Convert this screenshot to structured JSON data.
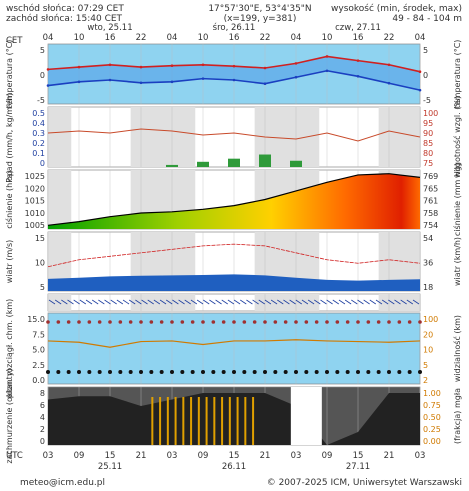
{
  "header": {
    "sunrise": "wschód słońca: 07:29 CET",
    "sunset": "zachód słońca: 15:40 CET",
    "coords": "17°57'30\"E, 53°4'35\"N",
    "grid": "(x=199, y=381)",
    "elev_title": "wysokość (min, środek, max)",
    "elev_values": "49 - 84 - 104 m"
  },
  "footer": {
    "email": "meteo@icm.edu.pl",
    "copyright": "© 2007-2025 ICM, Uniwersytet Warszawski"
  },
  "top_axis": {
    "tz": "CET",
    "hours": [
      "04",
      "10",
      "16",
      "22",
      "04",
      "10",
      "16",
      "22",
      "04",
      "10",
      "16",
      "22",
      "04"
    ],
    "days": [
      "wto, 25.11",
      "śro, 26.11",
      "czw, 27.11"
    ]
  },
  "bottom_axis": {
    "tz": "UTC",
    "hours": [
      "03",
      "09",
      "15",
      "21",
      "03",
      "09",
      "15",
      "21",
      "03",
      "09",
      "15",
      "21",
      "03"
    ],
    "days": [
      "25.11",
      "26.11",
      "27.11"
    ]
  },
  "chart_data": [
    {
      "type": "line",
      "id": "temperature",
      "ylabel_left": "temperatura (°C)",
      "ylabel_right": "temperatura (°C)",
      "yticks": [
        "5",
        "0",
        "-5"
      ],
      "ylim": [
        -7,
        6
      ],
      "x_hours_from_start": [
        0,
        6,
        12,
        18,
        24,
        30,
        36,
        42,
        48,
        54,
        60,
        66,
        72
      ],
      "series": [
        {
          "values": [
            0.5,
            1.0,
            1.5,
            1.0,
            1.3,
            1.5,
            1.2,
            0.8,
            1.8,
            3.3,
            2.4,
            1.5,
            0.0
          ]
        },
        {
          "values": [
            -3.0,
            -2.2,
            -1.8,
            -2.4,
            -2.2,
            -1.5,
            -1.8,
            -2.6,
            -1.2,
            0.2,
            -1.0,
            -2.5,
            -4.0
          ]
        }
      ]
    },
    {
      "type": "line",
      "id": "precipitation_humidity",
      "ylabel_left": "opad (mm/h, kg/m²/h)",
      "ylabel_right": "wilgotność wzgl. (%)",
      "yticks_left": [
        "0.5",
        "0.4",
        "0.3",
        "0.2",
        "0.1",
        "0"
      ],
      "yticks_right": [
        "100",
        "95",
        "90",
        "85",
        "80",
        "75"
      ],
      "humidity_values": [
        90,
        91,
        90,
        92,
        91,
        89,
        90,
        88,
        87,
        90,
        86,
        91,
        88
      ],
      "precip_values": [
        0,
        0,
        0,
        0,
        0.02,
        0.05,
        0.08,
        0.12,
        0.06,
        0,
        0,
        0,
        0
      ]
    },
    {
      "type": "area",
      "id": "pressure",
      "ylabel_left": "ciśnienie (hPa)",
      "ylabel_right": "ciśnienie (mm Hg)",
      "yticks_left": [
        "1025",
        "1020",
        "1015",
        "1010",
        "1005"
      ],
      "yticks_right": [
        "769",
        "765",
        "761",
        "758",
        "754"
      ],
      "ylim": [
        1003,
        1027
      ],
      "values": [
        1004.5,
        1006,
        1008,
        1009.5,
        1010,
        1011,
        1012.5,
        1015,
        1018.5,
        1022,
        1025,
        1025.5,
        1024
      ]
    },
    {
      "type": "line",
      "id": "wind",
      "ylabel_left": "wiatr (m/s)",
      "ylabel_right": "wiatr (km/h)",
      "yticks_left": [
        "15",
        "10",
        "5"
      ],
      "yticks_right": [
        "54",
        "36",
        "18"
      ],
      "gusts": [
        7,
        9,
        10,
        11,
        12,
        13,
        13.5,
        13,
        11,
        9,
        8,
        9,
        8
      ],
      "speed": [
        3.5,
        3.8,
        4.2,
        4.4,
        4.5,
        4.6,
        4.8,
        4.5,
        3.8,
        3.2,
        3.0,
        3.2,
        3.4
      ]
    },
    {
      "type": "scatter",
      "id": "cloudbase_visibility",
      "ylabel_left": "pion. rozciągł. chm. (km)",
      "ylabel_right": "widzialność (km)",
      "yticks_left": [
        "15.0",
        "7.5",
        "5.0",
        "2.5",
        "0.0"
      ],
      "yticks_right": [
        "100",
        "20",
        "10",
        "5",
        "2"
      ],
      "visibility": [
        20,
        18,
        12,
        19,
        20,
        15,
        20,
        20,
        22,
        20,
        19,
        18,
        20
      ]
    },
    {
      "type": "area",
      "id": "clouds_fog",
      "ylabel_left": "zachmurzenie (oktanty)",
      "ylabel_right": "(frakcja) mgła",
      "yticks_left": [
        "8",
        "6",
        "4",
        "2",
        "0"
      ],
      "yticks_right": [
        "1.00",
        "0.75",
        "0.50",
        "0.25",
        "0.00"
      ],
      "cloud_cover": [
        7,
        7.5,
        7.5,
        6,
        7,
        8,
        8,
        8,
        6,
        0,
        2,
        8,
        8
      ]
    }
  ]
}
